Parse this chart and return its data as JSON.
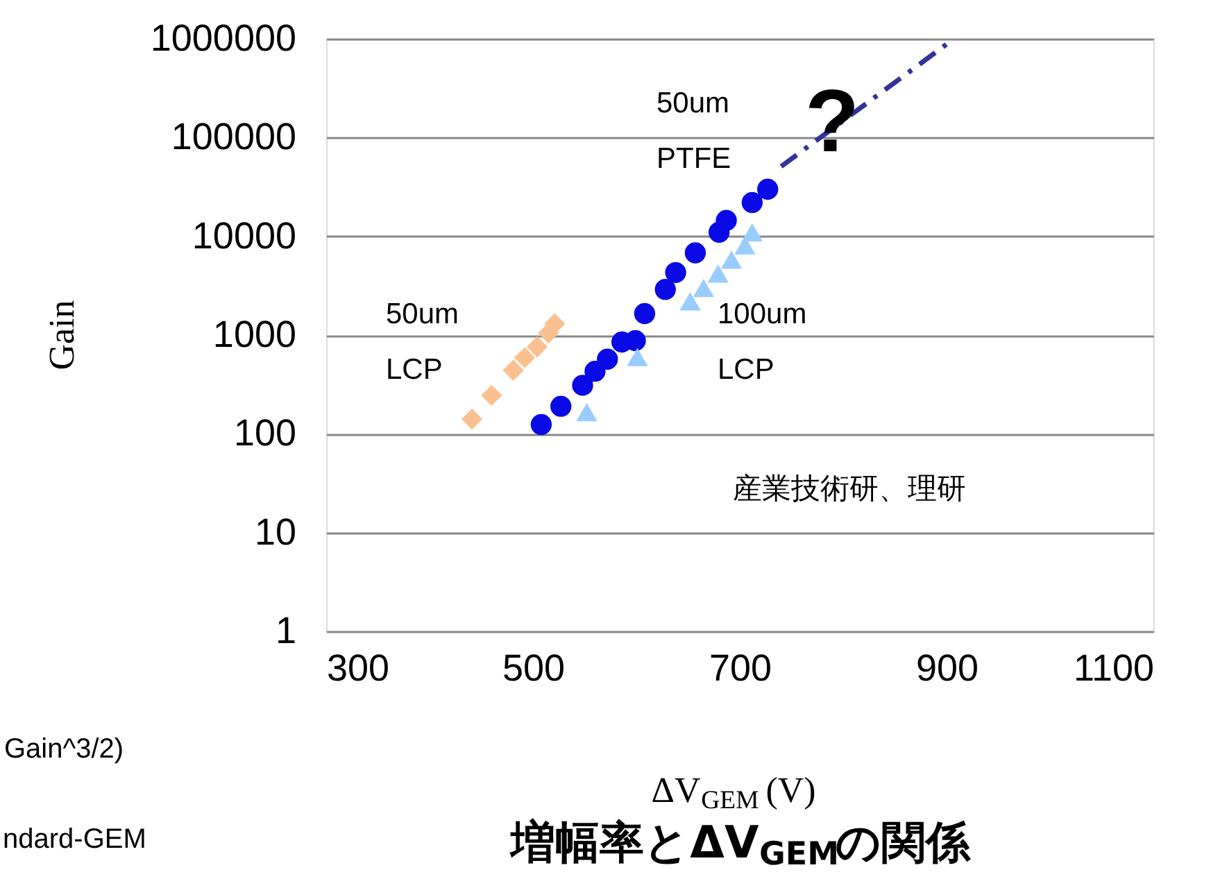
{
  "chart_data": {
    "type": "scatter",
    "title": "増幅率とΔV$_{GEM}$の関係",
    "xlabel": "ΔV$_{GEM}$ (V)",
    "ylabel": "Gain",
    "xlim": [
      300,
      1100
    ],
    "xticks": [
      300,
      500,
      700,
      900,
      1100
    ],
    "ylim": [
      1,
      1000000
    ],
    "yticks": [
      1,
      10,
      100,
      1000,
      10000,
      100000,
      1000000
    ],
    "log": "y",
    "grid": "y",
    "series": [
      {
        "marker": "diamond",
        "color": "#fac090",
        "x": [
          441,
          460,
          481,
          492,
          504,
          515,
          521
        ],
        "values": [
          141,
          245,
          440,
          590,
          760,
          1050,
          1300
        ]
      },
      {
        "marker": "circle",
        "color": "#0a0ae6",
        "x": [
          508,
          527,
          548,
          560,
          572,
          586,
          599,
          608,
          628,
          638,
          657,
          680,
          687,
          712,
          727
        ],
        "values": [
          124,
          190,
          310,
          430,
          570,
          850,
          880,
          1650,
          2900,
          4300,
          6800,
          11000,
          14500,
          22000,
          30000
        ]
      },
      {
        "marker": "triangle",
        "color": "#99ccff",
        "x": [
          552,
          601,
          652,
          665,
          679,
          692,
          705,
          712
        ],
        "values": [
          166,
          600,
          2200,
          3000,
          4200,
          5800,
          8100,
          11000
        ]
      },
      {
        "type": "line",
        "marker": "none",
        "line_style": "dashed",
        "color": "#333399",
        "x": [
          740,
          903
        ],
        "values": [
          51000,
          930000
        ]
      }
    ],
    "annotations": [
      "50um\nPTFE",
      "50um\nLCP",
      "100um\nLCP",
      "?",
      "産業技術研、理研",
      "Gain^3/2)",
      "ndard-GEM"
    ]
  }
}
